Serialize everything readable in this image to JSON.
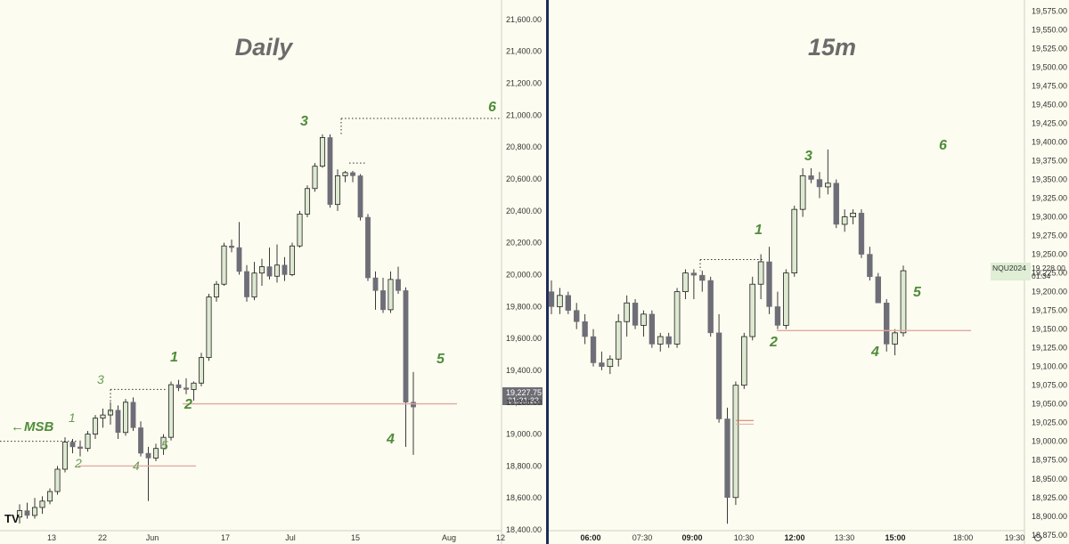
{
  "chart_data": [
    {
      "type": "candlestick",
      "title": "Daily",
      "ylim": [
        18350,
        21700
      ],
      "y_ticks": [
        "18,400.00",
        "18,600.00",
        "18,800.00",
        "19,000.00",
        "19,200.00",
        "19,400.00",
        "19,600.00",
        "19,800.00",
        "20,000.00",
        "20,200.00",
        "20,400.00",
        "20,600.00",
        "20,800.00",
        "21,000.00",
        "21,200.00",
        "21,400.00",
        "21,600.00"
      ],
      "x_ticks": [
        "13",
        "22",
        "Jun",
        "17",
        "Jul",
        "15",
        "Aug",
        "12"
      ],
      "price_label": {
        "value": "19,227.75",
        "countdown": "01:31:33"
      },
      "annotations": {
        "msb": "←MSB",
        "major_waves": [
          "1",
          "2",
          "3",
          "4",
          "5",
          "6"
        ],
        "minor_waves": [
          "1",
          "2",
          "3",
          "4",
          "5"
        ]
      },
      "candles": [
        [
          18480,
          18560,
          18440,
          18520
        ],
        [
          18520,
          18570,
          18470,
          18490
        ],
        [
          18490,
          18600,
          18470,
          18540
        ],
        [
          18540,
          18610,
          18500,
          18580
        ],
        [
          18580,
          18660,
          18560,
          18640
        ],
        [
          18640,
          18800,
          18620,
          18780
        ],
        [
          18780,
          18980,
          18760,
          18950
        ],
        [
          18950,
          18970,
          18880,
          18920
        ],
        [
          18920,
          18960,
          18860,
          18910
        ],
        [
          18910,
          19020,
          18890,
          19000
        ],
        [
          19000,
          19120,
          18970,
          19100
        ],
        [
          19100,
          19160,
          19040,
          19120
        ],
        [
          19120,
          19200,
          19060,
          19150
        ],
        [
          19150,
          19180,
          18970,
          19010
        ],
        [
          19010,
          19220,
          18990,
          19200
        ],
        [
          19200,
          19230,
          19020,
          19040
        ],
        [
          19040,
          19080,
          18860,
          18880
        ],
        [
          18880,
          18920,
          18580,
          18850
        ],
        [
          18850,
          18940,
          18830,
          18910
        ],
        [
          18910,
          19000,
          18870,
          18980
        ],
        [
          18980,
          19330,
          18960,
          19310
        ],
        [
          19310,
          19340,
          19270,
          19290
        ],
        [
          19290,
          19350,
          19250,
          19280
        ],
        [
          19280,
          19330,
          19210,
          19320
        ],
        [
          19320,
          19510,
          19300,
          19480
        ],
        [
          19480,
          19880,
          19460,
          19860
        ],
        [
          19860,
          19960,
          19830,
          19940
        ],
        [
          19940,
          20200,
          19930,
          20180
        ],
        [
          20180,
          20220,
          20140,
          20170
        ],
        [
          20170,
          20330,
          20000,
          20020
        ],
        [
          20020,
          20060,
          19830,
          19860
        ],
        [
          19860,
          20080,
          19840,
          20010
        ],
        [
          20010,
          20100,
          19930,
          20050
        ],
        [
          20050,
          20170,
          19970,
          19990
        ],
        [
          19990,
          20190,
          19950,
          20060
        ],
        [
          20060,
          20110,
          19960,
          20000
        ],
        [
          20000,
          20200,
          19990,
          20180
        ],
        [
          20180,
          20400,
          20170,
          20380
        ],
        [
          20380,
          20560,
          20360,
          20540
        ],
        [
          20540,
          20700,
          20520,
          20680
        ],
        [
          20680,
          20880,
          20670,
          20860
        ],
        [
          20860,
          20880,
          20420,
          20440
        ],
        [
          20440,
          20660,
          20400,
          20620
        ],
        [
          20620,
          20650,
          20580,
          20640
        ],
        [
          20640,
          20650,
          20580,
          20620
        ],
        [
          20620,
          20630,
          20340,
          20360
        ],
        [
          20360,
          20380,
          19960,
          19980
        ],
        [
          19980,
          20020,
          19780,
          19900
        ],
        [
          19900,
          19980,
          19760,
          19780
        ],
        [
          19780,
          20020,
          19760,
          19970
        ],
        [
          19970,
          20050,
          19880,
          19900
        ],
        [
          19900,
          19920,
          18920,
          19200
        ],
        [
          19200,
          19390,
          18870,
          19170
        ]
      ]
    },
    {
      "type": "candlestick",
      "title": "15m",
      "ylim": [
        18870,
        19585
      ],
      "y_ticks": [
        "18,875.00",
        "18,900.00",
        "18,925.00",
        "18,950.00",
        "18,975.00",
        "19,000.00",
        "19,025.00",
        "19,050.00",
        "19,075.00",
        "19,100.00",
        "19,125.00",
        "19,150.00",
        "19,175.00",
        "19,200.00",
        "19,225.00",
        "19,250.00",
        "19,275.00",
        "19,300.00",
        "19,325.00",
        "19,350.00",
        "19,375.00",
        "19,400.00",
        "19,425.00",
        "19,450.00",
        "19,475.00",
        "19,500.00",
        "19,525.00",
        "19,550.00",
        "19,575.00"
      ],
      "x_ticks": [
        "06:00",
        "07:30",
        "09:00",
        "10:30",
        "12:00",
        "13:30",
        "15:00",
        "18:00",
        "19:30"
      ],
      "price_label": {
        "symbol": "NQU2024",
        "value": "19,228.00",
        "countdown": "01:34"
      },
      "annotations": {
        "major_waves": [
          "1",
          "2",
          "3",
          "4",
          "5",
          "6"
        ]
      },
      "candles": [
        [
          19200,
          19215,
          19170,
          19180
        ],
        [
          19180,
          19205,
          19170,
          19195
        ],
        [
          19195,
          19200,
          19170,
          19175
        ],
        [
          19175,
          19185,
          19150,
          19160
        ],
        [
          19160,
          19170,
          19130,
          19140
        ],
        [
          19140,
          19150,
          19100,
          19105
        ],
        [
          19105,
          19120,
          19095,
          19100
        ],
        [
          19100,
          19115,
          19090,
          19110
        ],
        [
          19110,
          19170,
          19100,
          19160
        ],
        [
          19160,
          19195,
          19140,
          19185
        ],
        [
          19185,
          19190,
          19150,
          19155
        ],
        [
          19155,
          19175,
          19140,
          19170
        ],
        [
          19170,
          19175,
          19125,
          19130
        ],
        [
          19130,
          19145,
          19120,
          19140
        ],
        [
          19140,
          19145,
          19125,
          19130
        ],
        [
          19130,
          19205,
          19125,
          19200
        ],
        [
          19200,
          19230,
          19190,
          19225
        ],
        [
          19225,
          19230,
          19190,
          19222
        ],
        [
          19222,
          19228,
          19200,
          19215
        ],
        [
          19215,
          19220,
          19140,
          19145
        ],
        [
          19145,
          19170,
          19025,
          19030
        ],
        [
          19030,
          19045,
          18890,
          18925
        ],
        [
          18925,
          19080,
          18915,
          19075
        ],
        [
          19075,
          19145,
          19070,
          19140
        ],
        [
          19140,
          19220,
          19135,
          19210
        ],
        [
          19210,
          19250,
          19190,
          19240
        ],
        [
          19240,
          19260,
          19170,
          19180
        ],
        [
          19180,
          19200,
          19150,
          19155
        ],
        [
          19155,
          19230,
          19150,
          19225
        ],
        [
          19225,
          19315,
          19220,
          19310
        ],
        [
          19310,
          19365,
          19300,
          19355
        ],
        [
          19355,
          19365,
          19345,
          19350
        ],
        [
          19350,
          19360,
          19325,
          19340
        ],
        [
          19340,
          19390,
          19330,
          19345
        ],
        [
          19345,
          19350,
          19285,
          19290
        ],
        [
          19290,
          19310,
          19280,
          19300
        ],
        [
          19300,
          19310,
          19290,
          19305
        ],
        [
          19305,
          19310,
          19245,
          19250
        ],
        [
          19250,
          19260,
          19215,
          19220
        ],
        [
          19220,
          19225,
          19185,
          19185
        ],
        [
          19185,
          19190,
          19120,
          19130
        ],
        [
          19130,
          19150,
          19115,
          19145
        ],
        [
          19145,
          19235,
          19140,
          19228
        ]
      ]
    }
  ]
}
